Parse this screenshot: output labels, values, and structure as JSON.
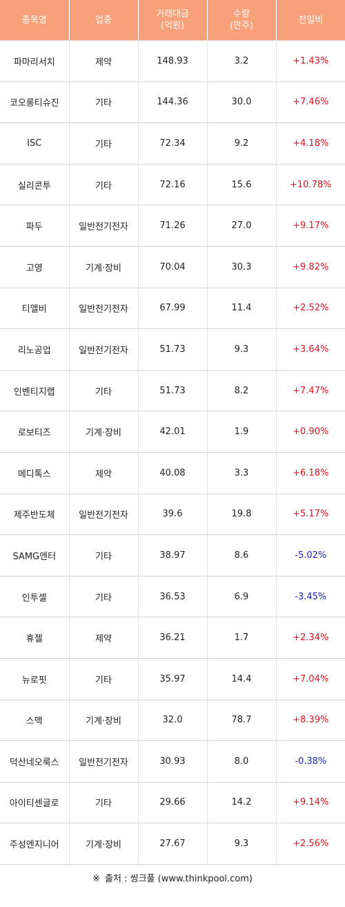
{
  "table": {
    "headers": [
      "종목명",
      "업종",
      "거래대금\n(억원)",
      "수량\n(만주)",
      "전일비"
    ],
    "rows": [
      {
        "name": "파마리서치",
        "sector": "제약",
        "amount": "148.93",
        "volume": "3.2",
        "change": "+1.43%",
        "dir": "up"
      },
      {
        "name": "코오롱티슈진",
        "sector": "기타",
        "amount": "144.36",
        "volume": "30.0",
        "change": "+7.46%",
        "dir": "up"
      },
      {
        "name": "ISC",
        "sector": "기타",
        "amount": "72.34",
        "volume": "9.2",
        "change": "+4.18%",
        "dir": "up"
      },
      {
        "name": "실리콘투",
        "sector": "기타",
        "amount": "72.16",
        "volume": "15.6",
        "change": "+10.78%",
        "dir": "up"
      },
      {
        "name": "파두",
        "sector": "일반전기전자",
        "amount": "71.26",
        "volume": "27.0",
        "change": "+9.17%",
        "dir": "up"
      },
      {
        "name": "고영",
        "sector": "기계·장비",
        "amount": "70.04",
        "volume": "30.3",
        "change": "+9.82%",
        "dir": "up"
      },
      {
        "name": "티엘비",
        "sector": "일반전기전자",
        "amount": "67.99",
        "volume": "11.4",
        "change": "+2.52%",
        "dir": "up"
      },
      {
        "name": "리노공업",
        "sector": "일반전기전자",
        "amount": "51.73",
        "volume": "9.3",
        "change": "+3.64%",
        "dir": "up"
      },
      {
        "name": "인벤티지랩",
        "sector": "기타",
        "amount": "51.73",
        "volume": "8.2",
        "change": "+7.47%",
        "dir": "up"
      },
      {
        "name": "로보티즈",
        "sector": "기계·장비",
        "amount": "42.01",
        "volume": "1.9",
        "change": "+0.90%",
        "dir": "up"
      },
      {
        "name": "메디톡스",
        "sector": "제약",
        "amount": "40.08",
        "volume": "3.3",
        "change": "+6.18%",
        "dir": "up"
      },
      {
        "name": "제주반도체",
        "sector": "일반전기전자",
        "amount": "39.6",
        "volume": "19.8",
        "change": "+5.17%",
        "dir": "up"
      },
      {
        "name": "SAMG엔터",
        "sector": "기타",
        "amount": "38.97",
        "volume": "8.6",
        "change": "-5.02%",
        "dir": "down"
      },
      {
        "name": "인투셀",
        "sector": "기타",
        "amount": "36.53",
        "volume": "6.9",
        "change": "-3.45%",
        "dir": "down"
      },
      {
        "name": "휴젤",
        "sector": "제약",
        "amount": "36.21",
        "volume": "1.7",
        "change": "+2.34%",
        "dir": "up"
      },
      {
        "name": "뉴로핏",
        "sector": "기타",
        "amount": "35.97",
        "volume": "14.4",
        "change": "+7.04%",
        "dir": "up"
      },
      {
        "name": "스맥",
        "sector": "기계·장비",
        "amount": "32.0",
        "volume": "78.7",
        "change": "+8.39%",
        "dir": "up"
      },
      {
        "name": "덕산네오룩스",
        "sector": "일반전기전자",
        "amount": "30.93",
        "volume": "8.0",
        "change": "-0.38%",
        "dir": "down"
      },
      {
        "name": "아이티센글로",
        "sector": "기타",
        "amount": "29.66",
        "volume": "14.2",
        "change": "+9.14%",
        "dir": "up"
      },
      {
        "name": "주성엔지니어",
        "sector": "기계·장비",
        "amount": "27.67",
        "volume": "9.3",
        "change": "+2.56%",
        "dir": "up"
      }
    ]
  },
  "source": {
    "mark": "※",
    "text": "출처 : 씽크풀 (www.thinkpool.com)"
  },
  "colors": {
    "header_bg": "#f7a07a",
    "up": "#e0121e",
    "down": "#1f28b8"
  }
}
